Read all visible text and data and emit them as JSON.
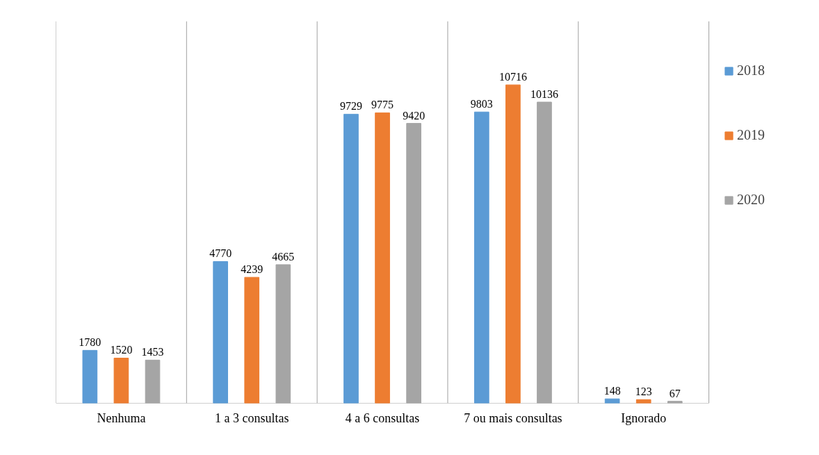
{
  "chart_data": {
    "type": "bar",
    "categories": [
      "Nenhuma",
      "1 a 3 consultas",
      "4 a 6 consultas",
      "7 ou mais consultas",
      "Ignorado"
    ],
    "series": [
      {
        "name": "2018",
        "color": "#5b9bd5",
        "values": [
          1780,
          4770,
          9729,
          9803,
          148
        ]
      },
      {
        "name": "2019",
        "color": "#ed7d31",
        "values": [
          1520,
          4239,
          9775,
          10716,
          123
        ]
      },
      {
        "name": "2020",
        "color": "#a5a5a5",
        "values": [
          1453,
          4665,
          9420,
          10136,
          67
        ]
      }
    ],
    "data_labels": true,
    "grid": "x",
    "legend": "right"
  }
}
